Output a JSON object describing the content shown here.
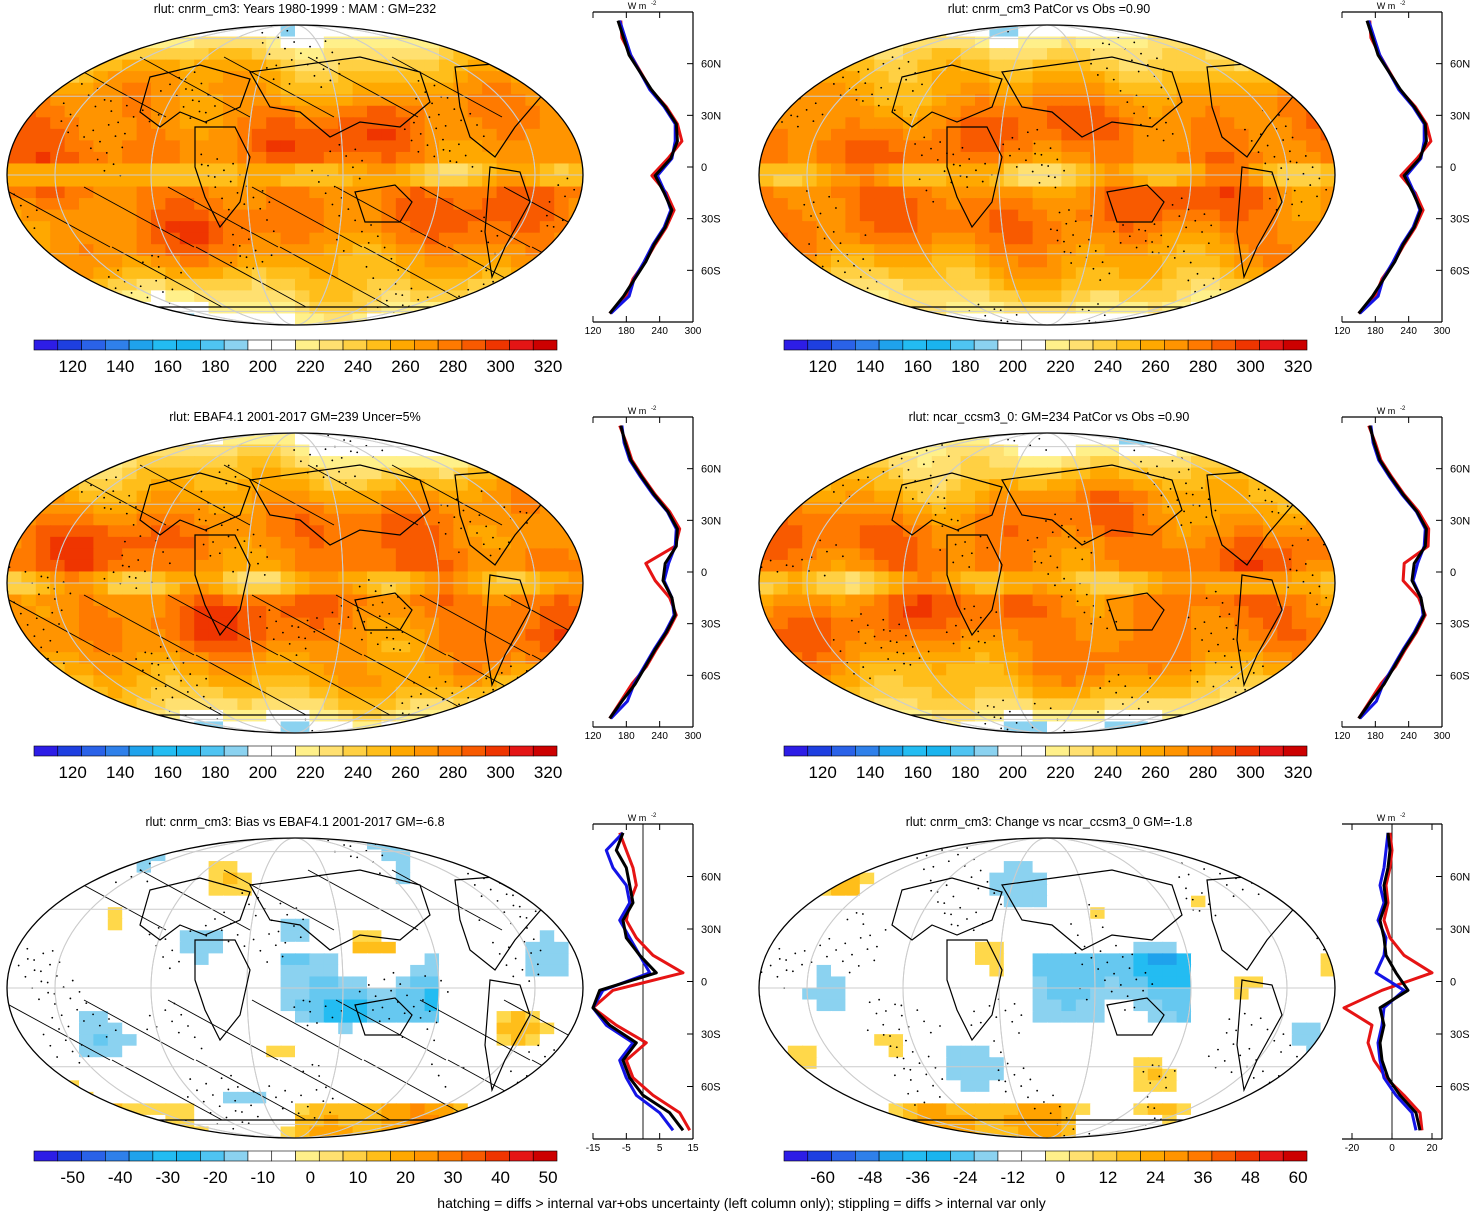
{
  "figure": {
    "footnote": "hatching = diffs > internal var+obs uncertainty (left column only); stippling = diffs > internal var only",
    "units_label": "W m",
    "units_superscript": "-2",
    "lat_tick_labels": [
      "60N",
      "30N",
      "0",
      "30S",
      "60S"
    ],
    "colors": {
      "land_outline": "#000000",
      "zonal_model": "#000000",
      "zonal_obs": "#1414e6",
      "zonal_other": "#e61414"
    }
  },
  "chart_data": [
    {
      "type": "heatmap",
      "id": "p1",
      "title": "rlut: cnrm_cm3: Years 1980-1999 : MAM : GM=232",
      "colorbar_labels": [
        "120",
        "140",
        "160",
        "180",
        "200",
        "220",
        "240",
        "260",
        "280",
        "300",
        "320"
      ],
      "colorbar_kind": "abs",
      "zonal": {
        "xlim": [
          120,
          300
        ],
        "xticks": [
          "120",
          "180",
          "240",
          "300"
        ],
        "zero_line": false,
        "lat": [
          85,
          75,
          65,
          55,
          45,
          35,
          25,
          15,
          5,
          -5,
          -15,
          -25,
          -35,
          -45,
          -55,
          -65,
          -75,
          -85
        ],
        "black": [
          165,
          175,
          185,
          205,
          225,
          250,
          270,
          272,
          260,
          232,
          248,
          262,
          250,
          230,
          215,
          195,
          175,
          150
        ],
        "blue": [
          168,
          178,
          188,
          205,
          222,
          248,
          268,
          268,
          262,
          236,
          250,
          260,
          248,
          228,
          212,
          194,
          185,
          152
        ],
        "red": [
          170,
          172,
          188,
          206,
          224,
          252,
          272,
          280,
          255,
          226,
          252,
          266,
          252,
          232,
          214,
          192,
          180,
          150
        ]
      }
    },
    {
      "type": "heatmap",
      "id": "p2",
      "title": "rlut: cnrm_cm3 PatCor vs Obs =0.90",
      "colorbar_labels": [
        "120",
        "140",
        "160",
        "180",
        "200",
        "220",
        "240",
        "260",
        "280",
        "300",
        "320"
      ],
      "colorbar_kind": "abs",
      "zonal": {
        "xlim": [
          120,
          300
        ],
        "xticks": [
          "120",
          "180",
          "240",
          "300"
        ],
        "zero_line": false,
        "lat": [
          85,
          75,
          65,
          55,
          45,
          35,
          25,
          15,
          5,
          -5,
          -15,
          -25,
          -35,
          -45,
          -55,
          -65,
          -75,
          -85
        ],
        "black": [
          165,
          175,
          185,
          205,
          225,
          250,
          270,
          272,
          260,
          232,
          248,
          262,
          250,
          230,
          215,
          195,
          175,
          150
        ],
        "blue": [
          168,
          178,
          188,
          205,
          222,
          248,
          268,
          268,
          262,
          236,
          250,
          260,
          248,
          228,
          212,
          194,
          185,
          152
        ],
        "red": [
          170,
          172,
          188,
          206,
          224,
          252,
          272,
          280,
          255,
          226,
          252,
          266,
          252,
          232,
          214,
          192,
          180,
          150
        ]
      }
    },
    {
      "type": "heatmap",
      "id": "p3",
      "title": "rlut: EBAF4.1 2001-2017 GM=239 Uncer=5%",
      "colorbar_labels": [
        "120",
        "140",
        "160",
        "180",
        "200",
        "220",
        "240",
        "260",
        "280",
        "300",
        "320"
      ],
      "colorbar_kind": "abs",
      "zonal": {
        "xlim": [
          120,
          300
        ],
        "xticks": [
          "120",
          "180",
          "240",
          "300"
        ],
        "zero_line": false,
        "lat": [
          85,
          75,
          65,
          55,
          45,
          35,
          25,
          15,
          5,
          -5,
          -15,
          -25,
          -35,
          -45,
          -55,
          -65,
          -75,
          -85
        ],
        "black": [
          170,
          178,
          188,
          208,
          230,
          255,
          272,
          270,
          250,
          246,
          262,
          268,
          252,
          232,
          214,
          196,
          172,
          150
        ],
        "blue": [
          172,
          176,
          186,
          206,
          228,
          254,
          270,
          268,
          256,
          248,
          262,
          266,
          250,
          230,
          212,
          194,
          182,
          152
        ],
        "red": [
          168,
          180,
          190,
          210,
          232,
          258,
          276,
          268,
          215,
          232,
          258,
          270,
          254,
          234,
          216,
          190,
          170,
          150
        ]
      }
    },
    {
      "type": "heatmap",
      "id": "p4",
      "title": "rlut: ncar_ccsm3_0: GM=234 PatCor vs Obs =0.90",
      "colorbar_labels": [
        "120",
        "140",
        "160",
        "180",
        "200",
        "220",
        "240",
        "260",
        "280",
        "300",
        "320"
      ],
      "colorbar_kind": "abs",
      "zonal": {
        "xlim": [
          120,
          300
        ],
        "xticks": [
          "120",
          "180",
          "240",
          "300"
        ],
        "zero_line": false,
        "lat": [
          85,
          75,
          65,
          55,
          45,
          35,
          25,
          15,
          5,
          -5,
          -15,
          -25,
          -35,
          -45,
          -55,
          -65,
          -75,
          -85
        ],
        "black": [
          170,
          178,
          188,
          208,
          230,
          255,
          272,
          270,
          250,
          246,
          262,
          268,
          252,
          232,
          214,
          196,
          172,
          150
        ],
        "blue": [
          172,
          176,
          186,
          206,
          228,
          254,
          270,
          268,
          256,
          248,
          262,
          266,
          250,
          230,
          212,
          194,
          182,
          152
        ],
        "red": [
          168,
          180,
          190,
          210,
          232,
          258,
          276,
          275,
          232,
          230,
          258,
          270,
          254,
          234,
          216,
          190,
          170,
          150
        ]
      }
    },
    {
      "type": "heatmap",
      "id": "p5",
      "title": "rlut: cnrm_cm3: Bias vs EBAF4.1 2001-2017 GM=-6.8",
      "colorbar_labels": [
        "-50",
        "-40",
        "-30",
        "-20",
        "-10",
        "0",
        "10",
        "20",
        "30",
        "40",
        "50"
      ],
      "colorbar_kind": "diff",
      "zonal": {
        "xlim": [
          -15,
          15
        ],
        "xticks": [
          "-15",
          "-5",
          "5",
          "15"
        ],
        "zero_line": true,
        "lat": [
          85,
          75,
          65,
          55,
          45,
          35,
          25,
          15,
          5,
          -5,
          -15,
          -25,
          -35,
          -45,
          -55,
          -65,
          -75,
          -85
        ],
        "black": [
          -6,
          -8,
          -5,
          -4,
          -3,
          -6,
          -5,
          -1,
          4,
          -13,
          -15,
          -10,
          -2,
          -6,
          -4,
          0,
          8,
          12
        ],
        "blue": [
          -6,
          -11,
          -9,
          -5,
          -4,
          -7,
          -4,
          -1,
          2,
          -12,
          -15,
          -11,
          -3,
          -7,
          -5,
          -2,
          5,
          9
        ],
        "red": [
          -7,
          -5,
          -3,
          -2,
          -4,
          -5,
          -2,
          3,
          12,
          -9,
          -15,
          -8,
          1,
          -5,
          -3,
          3,
          11,
          14
        ]
      }
    },
    {
      "type": "heatmap",
      "id": "p6",
      "title": "rlut: cnrm_cm3: Change vs ncar_ccsm3_0 GM=-1.8",
      "colorbar_labels": [
        "-60",
        "-48",
        "-36",
        "-24",
        "-12",
        "0",
        "12",
        "24",
        "36",
        "48",
        "60"
      ],
      "colorbar_kind": "diff",
      "zonal": {
        "xlim": [
          -25,
          25
        ],
        "xticks": [
          "-20",
          "0",
          "20"
        ],
        "zero_line": true,
        "lat": [
          85,
          75,
          65,
          55,
          45,
          35,
          25,
          15,
          5,
          -5,
          -15,
          -25,
          -35,
          -45,
          -55,
          -65,
          -75,
          -85
        ],
        "black": [
          -2,
          -1,
          -2,
          -4,
          -3,
          -6,
          -4,
          -3,
          2,
          8,
          -6,
          -4,
          -6,
          -5,
          -2,
          4,
          12,
          14
        ],
        "blue": [
          -2,
          -3,
          -4,
          -6,
          -4,
          -7,
          -3,
          -4,
          -8,
          6,
          -4,
          -5,
          -7,
          -6,
          -4,
          2,
          10,
          12
        ],
        "red": [
          -1,
          0,
          -1,
          -3,
          -2,
          -4,
          -1,
          6,
          20,
          -5,
          -24,
          -10,
          -12,
          -9,
          -3,
          6,
          14,
          15
        ]
      }
    }
  ]
}
